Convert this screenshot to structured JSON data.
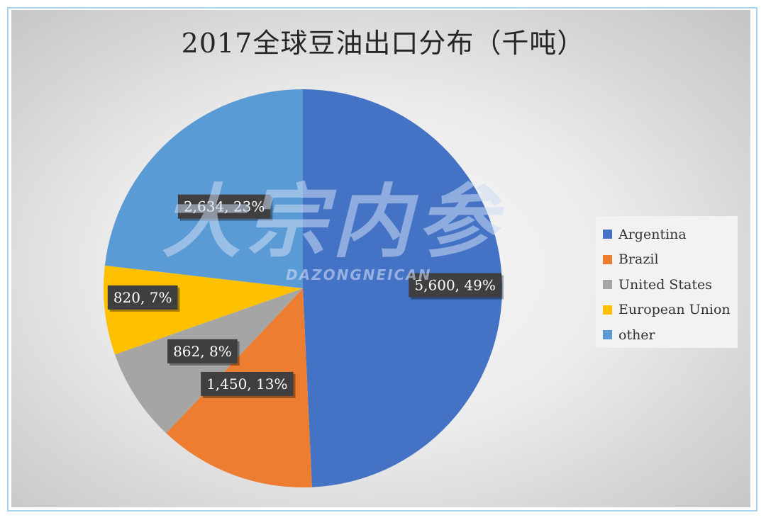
{
  "chart_data": {
    "type": "pie",
    "title": "2017全球豆油出口分布（千吨）",
    "categories": [
      "Argentina",
      "Brazil",
      "United States",
      "European Union",
      "other"
    ],
    "values": [
      5600,
      1450,
      862,
      820,
      2634
    ],
    "percent_labels": [
      "49%",
      "13%",
      "8%",
      "7%",
      "23%"
    ],
    "data_labels": [
      "5,600, 49%",
      "1,450, 13%",
      "862, 8%",
      "820, 7%",
      "2,634, 23%"
    ],
    "colors": [
      "#4472c4",
      "#ed7d31",
      "#a5a5a5",
      "#ffc000",
      "#5b9bd5"
    ],
    "legend_position": "right"
  },
  "watermark": {
    "main": "大宗内参",
    "sub": "DAZONGNEICAN"
  }
}
